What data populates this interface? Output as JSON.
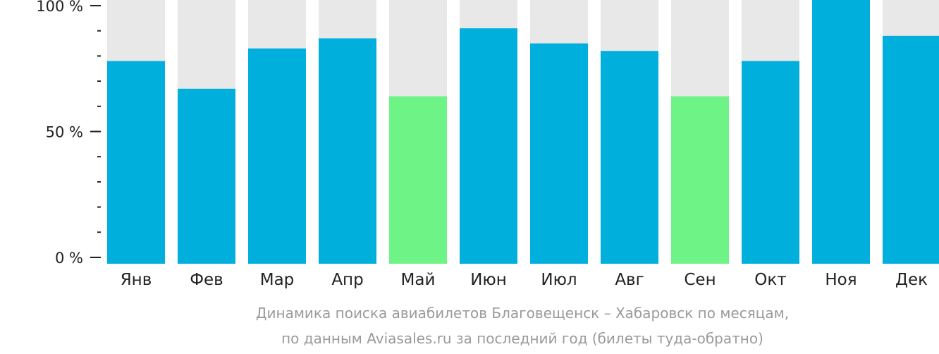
{
  "chart_data": {
    "type": "bar",
    "categories": [
      "Янв",
      "Фев",
      "Мар",
      "Апр",
      "Май",
      "Июн",
      "Июл",
      "Авг",
      "Сен",
      "Окт",
      "Ноя",
      "Дек"
    ],
    "values": [
      78,
      67,
      83,
      87,
      64,
      91,
      85,
      82,
      64,
      78,
      100,
      88
    ],
    "highlight_categories": [
      "Май",
      "Сен"
    ],
    "ylim": [
      0,
      100
    ],
    "y_ticks": [
      {
        "value": 100,
        "label": "100 %"
      },
      {
        "value": 50,
        "label": "50 %"
      },
      {
        "value": 0,
        "label": "0 %"
      }
    ],
    "grid": false,
    "colors": {
      "bar": "#00afdc",
      "highlight": "#6ef387",
      "background_bar": "#e8e8e8",
      "axis": "#222222"
    }
  },
  "caption": {
    "line1": "Динамика поиска авиабилетов Благовещенск – Хабаровск по месяцам,",
    "line2": "по данным Aviasales.ru за последний год (билеты туда-обратно)"
  }
}
